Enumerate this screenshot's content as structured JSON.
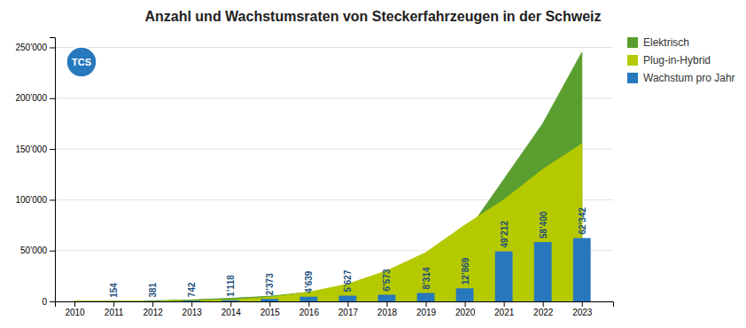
{
  "chart_data": {
    "type": "area",
    "title": "Anzahl und Wachstumsraten von Steckerfahrzeugen in der Schweiz",
    "x": [
      2010,
      2011,
      2012,
      2013,
      2014,
      2015,
      2016,
      2017,
      2018,
      2019,
      2020,
      2021,
      2022,
      2023
    ],
    "series": [
      {
        "name": "Elektrisch",
        "type": "area",
        "color": "#5a9e2f",
        "values": [
          0,
          200,
          600,
          1500,
          3000,
          5000,
          9000,
          15000,
          25000,
          40000,
          65000,
          120000,
          175000,
          245000
        ]
      },
      {
        "name": "Plug-in-Hybrid",
        "type": "area",
        "color": "#b5c900",
        "values": [
          0,
          100,
          300,
          700,
          1500,
          4000,
          9000,
          17000,
          30000,
          48000,
          75000,
          100000,
          130000,
          155000
        ]
      },
      {
        "name": "Wachstum pro Jahr",
        "type": "bar",
        "color": "#2878be",
        "values": [
          null,
          154,
          381,
          742,
          1118,
          2373,
          4639,
          5627,
          6573,
          8314,
          12869,
          49212,
          58400,
          62342
        ],
        "value_labels": [
          null,
          "154",
          "381",
          "742",
          "1’118",
          "2’373",
          "4’639",
          "5’627",
          "6’573",
          "8’314",
          "12’869",
          "49’212",
          "58’400",
          "62’342"
        ]
      }
    ],
    "xlim": [
      2009.5,
      2023.8
    ],
    "xticks": [
      2010,
      2011,
      2012,
      2013,
      2014,
      2015,
      2016,
      2017,
      2018,
      2019,
      2020,
      2021,
      2022,
      2023
    ],
    "ylim": [
      0,
      260000
    ],
    "yticks": [
      0,
      {
        "value": 50000,
        "label": "50’000"
      },
      {
        "value": 100000,
        "label": "100’000"
      },
      {
        "value": 150000,
        "label": "150’000"
      },
      {
        "value": 200000,
        "label": "200’000"
      },
      {
        "value": 250000,
        "label": "250’000"
      }
    ],
    "grid": true,
    "legend": "upper right",
    "data_labels": true,
    "annotations": [
      "TCS"
    ]
  }
}
